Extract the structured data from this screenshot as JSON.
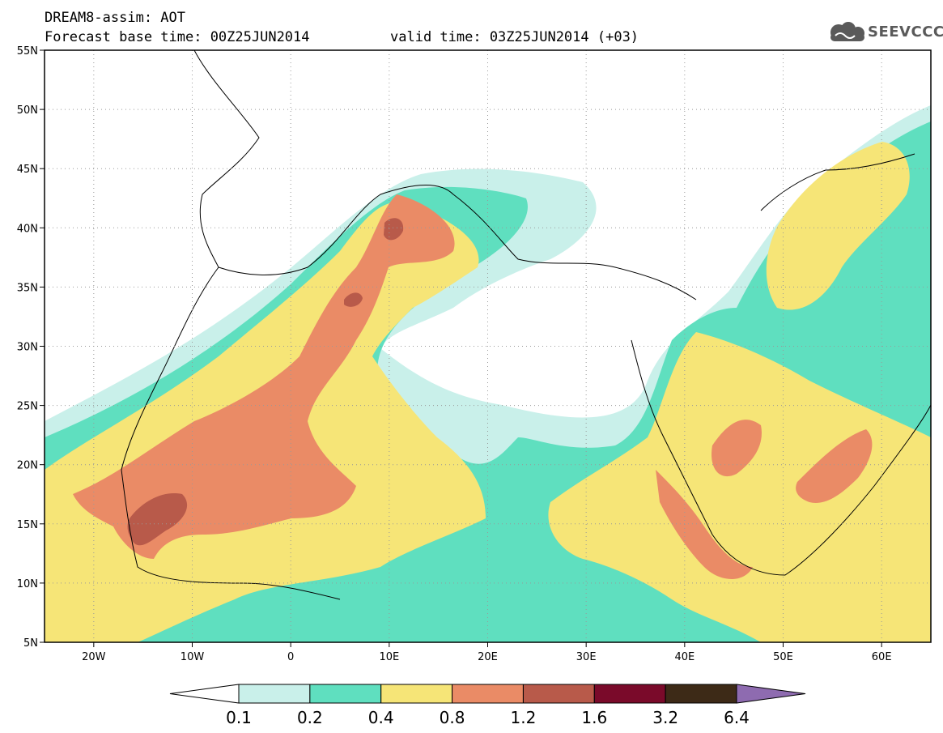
{
  "header": {
    "title_line1": "DREAM8-assim: AOT",
    "title_line2": "Forecast base time: 00Z25JUN2014",
    "valid_time": "valid time: 03Z25JUN2014 (+03)",
    "logo_text": "SEEVCCC"
  },
  "map": {
    "lon_range": [
      -25,
      65
    ],
    "lat_range": [
      5,
      55
    ],
    "x_ticks": [
      {
        "lon": -20,
        "label": "20W"
      },
      {
        "lon": -10,
        "label": "10W"
      },
      {
        "lon": 0,
        "label": "0"
      },
      {
        "lon": 10,
        "label": "10E"
      },
      {
        "lon": 20,
        "label": "20E"
      },
      {
        "lon": 30,
        "label": "30E"
      },
      {
        "lon": 40,
        "label": "40E"
      },
      {
        "lon": 50,
        "label": "50E"
      },
      {
        "lon": 60,
        "label": "60E"
      }
    ],
    "y_ticks": [
      {
        "lat": 55,
        "label": "55N"
      },
      {
        "lat": 50,
        "label": "50N"
      },
      {
        "lat": 45,
        "label": "45N"
      },
      {
        "lat": 40,
        "label": "40N"
      },
      {
        "lat": 35,
        "label": "35N"
      },
      {
        "lat": 30,
        "label": "30N"
      },
      {
        "lat": 25,
        "label": "25N"
      },
      {
        "lat": 20,
        "label": "20N"
      },
      {
        "lat": 15,
        "label": "15N"
      },
      {
        "lat": 10,
        "label": "10N"
      },
      {
        "lat": 5,
        "label": "5N"
      }
    ]
  },
  "colorbar": {
    "labels": [
      "0.1",
      "0.2",
      "0.4",
      "0.8",
      "1.2",
      "1.6",
      "3.2",
      "6.4"
    ],
    "colors": [
      "#ffffff",
      "#c9f0ea",
      "#5fdfbf",
      "#f6e577",
      "#ea8b66",
      "#b85a4a",
      "#7a0a2a",
      "#3d2a17",
      "#8e6bb0"
    ]
  }
}
